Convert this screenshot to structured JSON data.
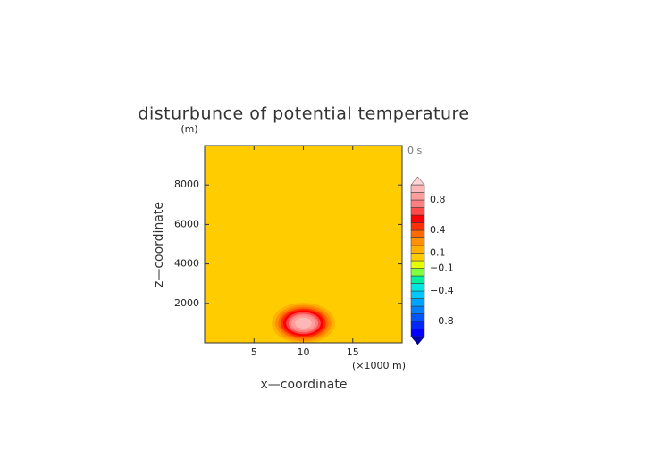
{
  "chart_data": {
    "type": "contourf",
    "title": "disturbunce of potential temperature",
    "time_label": "0 s",
    "x_label": "x—coordinate",
    "y_label": "z—coordinate",
    "x_unit": "(×1000 m)",
    "y_unit": "(m)",
    "xlim": [
      0,
      20
    ],
    "ylim": [
      0,
      10000
    ],
    "xticks": [
      5,
      10,
      15
    ],
    "yticks": [
      2000,
      4000,
      6000,
      8000
    ],
    "background_level": 0,
    "center": [
      10,
      1000
    ],
    "contours": [
      {
        "level": 0.1,
        "rx": 3.2,
        "rz": 1030
      },
      {
        "level": 0.2,
        "rx": 2.85,
        "rz": 920
      },
      {
        "level": 0.3,
        "rx": 2.55,
        "rz": 820
      },
      {
        "level": 0.4,
        "rx": 2.3,
        "rz": 730
      },
      {
        "level": 0.5,
        "rx": 2.05,
        "rz": 650
      },
      {
        "level": 0.6,
        "rx": 1.75,
        "rz": 560
      },
      {
        "level": 0.7,
        "rx": 1.5,
        "rz": 470
      },
      {
        "level": 0.8,
        "rx": 1.2,
        "rz": 380
      },
      {
        "level": 0.9,
        "rx": 0.85,
        "rz": 270
      }
    ],
    "levels": [
      -1,
      -0.9,
      -0.8,
      -0.7,
      -0.6,
      -0.5,
      -0.4,
      -0.3,
      -0.2,
      -0.1,
      0,
      0.1,
      0.2,
      0.3,
      0.4,
      0.5,
      0.6,
      0.7,
      0.8,
      0.9,
      1
    ],
    "colors": [
      "#0000ff",
      "#0028ff",
      "#0055ff",
      "#0080ff",
      "#00a4ff",
      "#00c8ff",
      "#00e6e0",
      "#00f0a0",
      "#80ff40",
      "#e6ff00",
      "#ffcc00",
      "#ffb000",
      "#ff9000",
      "#ff6a00",
      "#ff3000",
      "#ff0000",
      "#ff4a4a",
      "#ff8080",
      "#ff9c9c",
      "#ffb8b8"
    ],
    "extend_colors": [
      "#0000b0",
      "#ffd4d4"
    ],
    "colorbar_ticks": [
      0.8,
      0.4,
      0.1,
      {
        "value": -0.1,
        "label": "−0.1"
      },
      {
        "value": -0.4,
        "label": "−0.4"
      },
      {
        "value": -0.8,
        "label": "−0.8"
      }
    ]
  }
}
